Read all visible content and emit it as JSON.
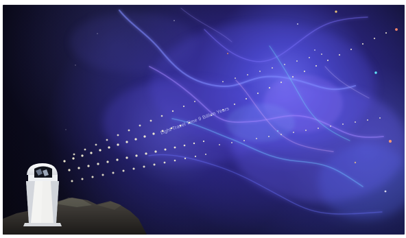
{
  "scene": {
    "caption": "Light Travel Time 9 Billion Years",
    "colors": {
      "background": "#ffffff",
      "space_deep": "#07070f",
      "nebula_blue": "#5d5cff",
      "nebula_violet": "#7d5bff",
      "nebula_cyan": "#67c8ff",
      "light_dots": "#f6f2d8",
      "telescope_white": "#f5f5f1",
      "mountain": "#2f2d2a"
    }
  }
}
